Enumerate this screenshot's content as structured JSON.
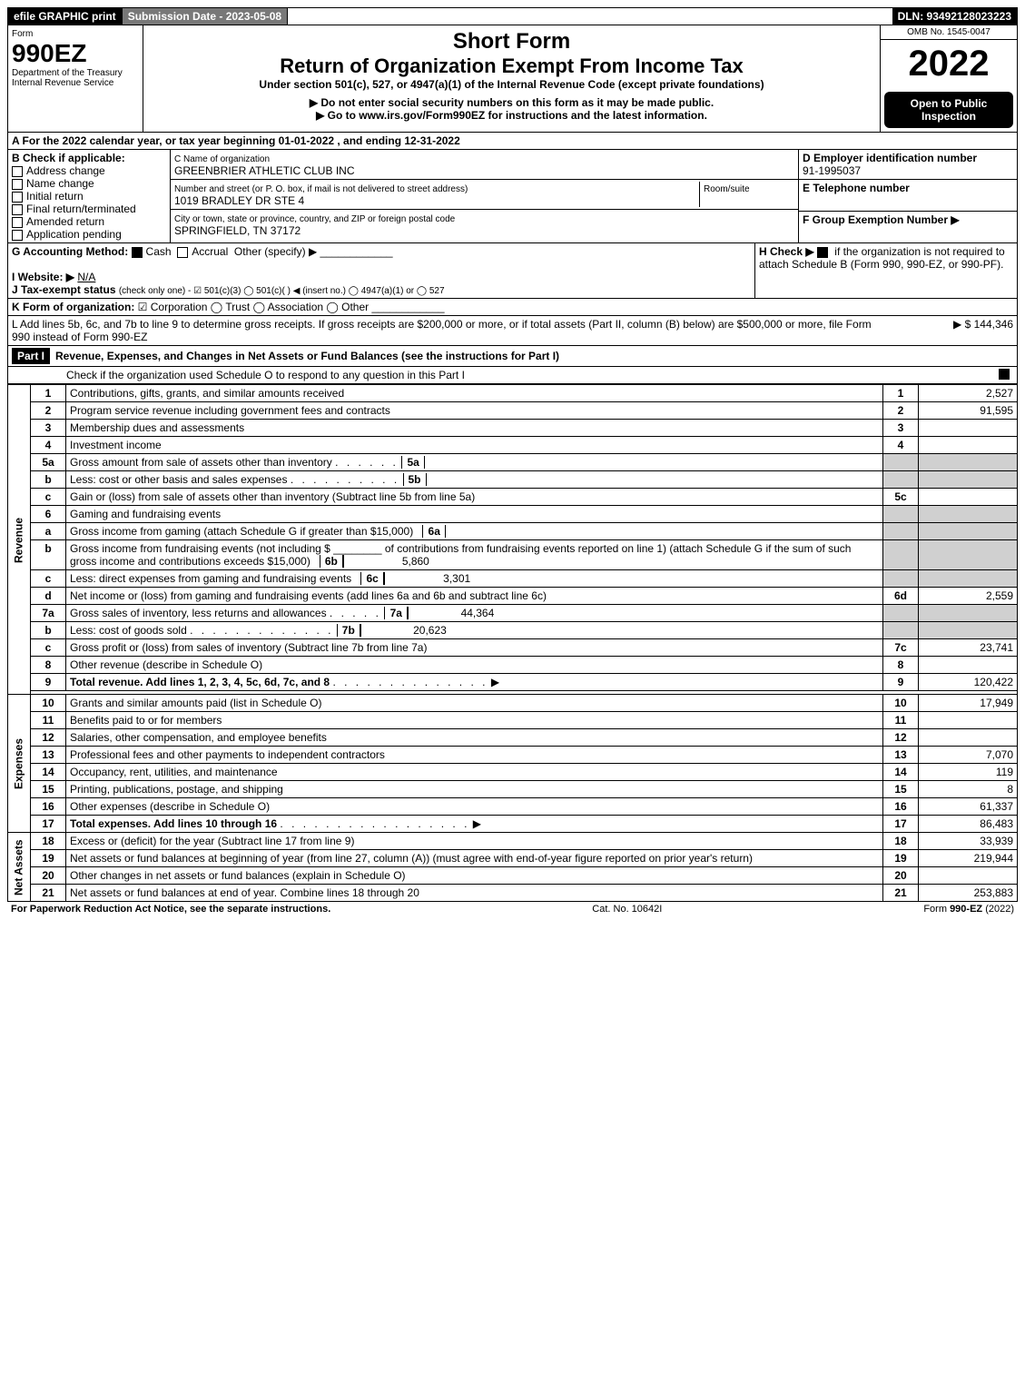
{
  "topbar": {
    "efile": "efile GRAPHIC print",
    "submission": "Submission Date - 2023-05-08",
    "dln": "DLN: 93492128023223"
  },
  "header": {
    "form_word": "Form",
    "form_no": "990EZ",
    "dept": "Department of the Treasury",
    "irs": "Internal Revenue Service",
    "title1": "Short Form",
    "title2": "Return of Organization Exempt From Income Tax",
    "subtitle": "Under section 501(c), 527, or 4947(a)(1) of the Internal Revenue Code (except private foundations)",
    "warn": "▶ Do not enter social security numbers on this form as it may be made public.",
    "goto": "▶ Go to www.irs.gov/Form990EZ for instructions and the latest information.",
    "omb": "OMB No. 1545-0047",
    "year": "2022",
    "open": "Open to Public Inspection"
  },
  "A": "A  For the 2022 calendar year, or tax year beginning 01-01-2022 , and ending 12-31-2022",
  "B": {
    "label": "B  Check if applicable:",
    "opts": [
      "Address change",
      "Name change",
      "Initial return",
      "Final return/terminated",
      "Amended return",
      "Application pending"
    ]
  },
  "C": {
    "label": "C Name of organization",
    "name": "GREENBRIER ATHLETIC CLUB INC",
    "street_label": "Number and street (or P. O. box, if mail is not delivered to street address)",
    "room": "Room/suite",
    "street": "1019 BRADLEY DR STE 4",
    "city_label": "City or town, state or province, country, and ZIP or foreign postal code",
    "city": "SPRINGFIELD, TN  37172"
  },
  "D": {
    "label": "D Employer identification number",
    "ein": "91-1995037"
  },
  "E": {
    "label": "E Telephone number"
  },
  "F": {
    "label": "F Group Exemption Number  ▶"
  },
  "G": {
    "label": "G Accounting Method:",
    "cash": "Cash",
    "accrual": "Accrual",
    "other": "Other (specify) ▶"
  },
  "H": {
    "label": "H  Check ▶",
    "text": "if the organization is not required to attach Schedule B (Form 990, 990-EZ, or 990-PF)."
  },
  "I": {
    "label": "I Website: ▶",
    "val": "N/A"
  },
  "J": {
    "label": "J Tax-exempt status",
    "text": "(check only one) - ☑ 501(c)(3)  ◯ 501(c)(  ) ◀ (insert no.)  ◯ 4947(a)(1) or  ◯ 527"
  },
  "K": {
    "label": "K Form of organization:",
    "text": "☑ Corporation  ◯ Trust  ◯ Association  ◯ Other"
  },
  "L": {
    "text": "L Add lines 5b, 6c, and 7b to line 9 to determine gross receipts. If gross receipts are $200,000 or more, or if total assets (Part II, column (B) below) are $500,000 or more, file Form 990 instead of Form 990-EZ",
    "amt": "▶ $ 144,346"
  },
  "partI": {
    "hdr": "Part I",
    "title": "Revenue, Expenses, and Changes in Net Assets or Fund Balances (see the instructions for Part I)",
    "check": "Check if the organization used Schedule O to respond to any question in this Part I"
  },
  "sideLabels": {
    "rev": "Revenue",
    "exp": "Expenses",
    "na": "Net Assets"
  },
  "lines": {
    "1": {
      "d": "Contributions, gifts, grants, and similar amounts received",
      "a": "2,527"
    },
    "2": {
      "d": "Program service revenue including government fees and contracts",
      "a": "91,595"
    },
    "3": {
      "d": "Membership dues and assessments",
      "a": ""
    },
    "4": {
      "d": "Investment income",
      "a": ""
    },
    "5a": {
      "d": "Gross amount from sale of assets other than inventory",
      "sn": "5a",
      "sa": ""
    },
    "5b": {
      "d": "Less: cost or other basis and sales expenses",
      "sn": "5b",
      "sa": ""
    },
    "5c": {
      "d": "Gain or (loss) from sale of assets other than inventory (Subtract line 5b from line 5a)",
      "a": ""
    },
    "6": {
      "d": "Gaming and fundraising events"
    },
    "6a": {
      "d": "Gross income from gaming (attach Schedule G if greater than $15,000)",
      "sn": "6a",
      "sa": ""
    },
    "6b_pre": "Gross income from fundraising events (not including $",
    "6b_post": "of contributions from fundraising events reported on line 1) (attach Schedule G if the sum of such gross income and contributions exceeds $15,000)",
    "6b": {
      "sn": "6b",
      "sa": "5,860"
    },
    "6c": {
      "d": "Less: direct expenses from gaming and fundraising events",
      "sn": "6c",
      "sa": "3,301"
    },
    "6d": {
      "d": "Net income or (loss) from gaming and fundraising events (add lines 6a and 6b and subtract line 6c)",
      "a": "2,559"
    },
    "7a": {
      "d": "Gross sales of inventory, less returns and allowances",
      "sn": "7a",
      "sa": "44,364"
    },
    "7b": {
      "d": "Less: cost of goods sold",
      "sn": "7b",
      "sa": "20,623"
    },
    "7c": {
      "d": "Gross profit or (loss) from sales of inventory (Subtract line 7b from line 7a)",
      "a": "23,741"
    },
    "8": {
      "d": "Other revenue (describe in Schedule O)",
      "a": ""
    },
    "9": {
      "d": "Total revenue. Add lines 1, 2, 3, 4, 5c, 6d, 7c, and 8",
      "a": "120,422"
    },
    "10": {
      "d": "Grants and similar amounts paid (list in Schedule O)",
      "a": "17,949"
    },
    "11": {
      "d": "Benefits paid to or for members",
      "a": ""
    },
    "12": {
      "d": "Salaries, other compensation, and employee benefits",
      "a": ""
    },
    "13": {
      "d": "Professional fees and other payments to independent contractors",
      "a": "7,070"
    },
    "14": {
      "d": "Occupancy, rent, utilities, and maintenance",
      "a": "119"
    },
    "15": {
      "d": "Printing, publications, postage, and shipping",
      "a": "8"
    },
    "16": {
      "d": "Other expenses (describe in Schedule O)",
      "a": "61,337"
    },
    "17": {
      "d": "Total expenses. Add lines 10 through 16",
      "a": "86,483"
    },
    "18": {
      "d": "Excess or (deficit) for the year (Subtract line 17 from line 9)",
      "a": "33,939"
    },
    "19": {
      "d": "Net assets or fund balances at beginning of year (from line 27, column (A)) (must agree with end-of-year figure reported on prior year's return)",
      "a": "219,944"
    },
    "20": {
      "d": "Other changes in net assets or fund balances (explain in Schedule O)",
      "a": ""
    },
    "21": {
      "d": "Net assets or fund balances at end of year. Combine lines 18 through 20",
      "a": "253,883"
    }
  },
  "footer": {
    "left": "For Paperwork Reduction Act Notice, see the separate instructions.",
    "mid": "Cat. No. 10642I",
    "right": "Form 990-EZ (2022)"
  }
}
